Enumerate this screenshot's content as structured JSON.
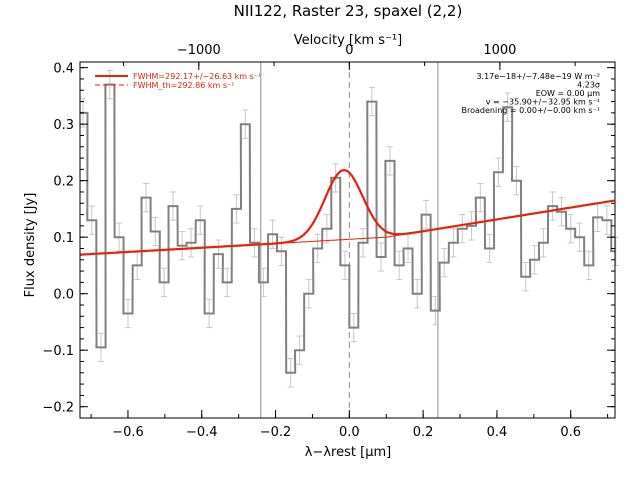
{
  "chart_data": {
    "type": "line",
    "title": "NII122, Raster 23, spaxel (2,2)",
    "xlabel": "λ−λrest [μm]",
    "ylabel": "Flux density [Jy]",
    "top_axis_label": "Velocity [km s⁻¹]",
    "xlim": [
      -0.73,
      0.72
    ],
    "ylim": [
      -0.22,
      0.41
    ],
    "x_ticks": [
      -0.6,
      -0.4,
      -0.2,
      0.0,
      0.2,
      0.4,
      0.6
    ],
    "x_tick_labels": [
      "−0.6",
      "−0.4",
      "−0.2",
      "0.0",
      "0.2",
      "0.4",
      "0.6"
    ],
    "y_ticks": [
      -0.2,
      -0.1,
      0.0,
      0.1,
      0.2,
      0.3,
      0.4
    ],
    "y_tick_labels": [
      "−0.2",
      "−0.1",
      "0.0",
      "0.1",
      "0.2",
      "0.3",
      "0.4"
    ],
    "top_ticks_kms": [
      -1000,
      0,
      1000
    ],
    "top_tick_labels": [
      "−1000",
      "0",
      "1000"
    ],
    "kms_per_micron": 2451,
    "grid": false,
    "legend_position": "top-left",
    "legend": [
      {
        "label": "FWHM=292.17+/−26.63 km s⁻¹",
        "style": "solid"
      },
      {
        "label": "FWHM_th=292.86 km s⁻¹",
        "style": "dashed"
      }
    ],
    "annotations": [
      "3.17e−18+/−7.48e−19 W m⁻²",
      "4.23σ",
      "EOW = 0.00 μm",
      "v = −35.90+/−32.95 km s⁻¹",
      "Broadening = 0.00+/−0.00 km s⁻¹"
    ],
    "vertical_lines": [
      {
        "x": -0.24,
        "style": "solid"
      },
      {
        "x": 0.0,
        "style": "dashed"
      },
      {
        "x": 0.24,
        "style": "solid"
      }
    ],
    "bin_width": 0.0245,
    "series": [
      {
        "kind": "histogram_with_errors",
        "x": [
          -0.722,
          -0.698,
          -0.673,
          -0.649,
          -0.624,
          -0.6,
          -0.575,
          -0.551,
          -0.526,
          -0.502,
          -0.478,
          -0.453,
          -0.429,
          -0.404,
          -0.38,
          -0.355,
          -0.331,
          -0.306,
          -0.282,
          -0.257,
          -0.233,
          -0.208,
          -0.184,
          -0.159,
          -0.135,
          -0.11,
          -0.086,
          -0.061,
          -0.037,
          -0.012,
          0.012,
          0.037,
          0.061,
          0.086,
          0.11,
          0.135,
          0.159,
          0.184,
          0.208,
          0.233,
          0.257,
          0.282,
          0.306,
          0.331,
          0.355,
          0.38,
          0.404,
          0.429,
          0.453,
          0.478,
          0.502,
          0.526,
          0.551,
          0.575,
          0.6,
          0.624,
          0.649,
          0.673,
          0.698,
          0.722
        ],
        "y": [
          0.32,
          0.13,
          -0.095,
          0.37,
          0.1,
          -0.035,
          0.05,
          0.17,
          0.11,
          0.02,
          0.155,
          0.085,
          0.09,
          0.13,
          -0.035,
          0.07,
          0.02,
          0.15,
          0.3,
          0.09,
          0.02,
          0.105,
          0.075,
          -0.14,
          -0.1,
          0.0,
          0.08,
          0.115,
          0.205,
          0.05,
          -0.06,
          0.09,
          0.34,
          0.065,
          0.235,
          0.05,
          0.08,
          0.0,
          0.14,
          -0.03,
          0.055,
          0.09,
          0.115,
          0.12,
          0.17,
          0.08,
          0.215,
          0.33,
          0.2,
          0.03,
          0.06,
          0.09,
          0.155,
          0.145,
          0.115,
          0.1,
          0.05,
          0.135,
          0.13,
          0.075
        ],
        "err": 0.025
      },
      {
        "name": "Fit",
        "kind": "gaussian_plus_continuum",
        "color": "#e8200c",
        "amplitude": 0.123,
        "center": -0.015,
        "sigma": 0.051,
        "continuum_points": [
          [
            -0.73,
            0.069
          ],
          [
            0.1,
            0.1
          ],
          [
            0.72,
            0.165
          ]
        ]
      },
      {
        "kind": "continuum",
        "color": "#e8200c",
        "points": [
          [
            -0.73,
            0.069
          ],
          [
            0.1,
            0.1
          ],
          [
            0.72,
            0.165
          ]
        ]
      }
    ]
  }
}
